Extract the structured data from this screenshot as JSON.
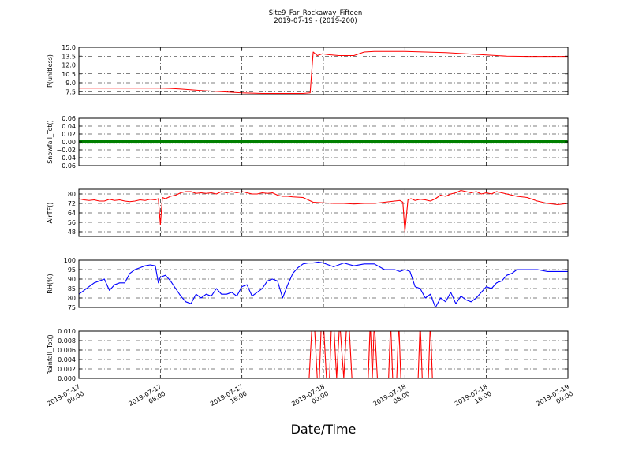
{
  "figure": {
    "title_line1": "Site9_Far_Rockaway_Fifteen",
    "title_line2": "2019-07-19 - (2019-200)",
    "xlabel": "Date/Time"
  },
  "chart_data": [
    {
      "type": "line",
      "ylabel": "P(unitless)",
      "ylim": [
        7.0,
        15.0
      ],
      "yticks": [
        "15.0",
        "13.5",
        "12.0",
        "10.5",
        "9.0",
        "7.5"
      ],
      "ytick_values": [
        15.0,
        13.5,
        12.0,
        10.5,
        9.0,
        7.5
      ],
      "grid": true,
      "series": [
        {
          "color": "#ff0000",
          "x": [
            0,
            2,
            4,
            6,
            8,
            9,
            10,
            12,
            14,
            16,
            18,
            20,
            22,
            22.7,
            23,
            23.4,
            23.9,
            24.5,
            25.5,
            27,
            28,
            29,
            30,
            32,
            34,
            36,
            38,
            40,
            42,
            44,
            46,
            48
          ],
          "y": [
            8.1,
            8.1,
            8.1,
            8.1,
            8.1,
            8.05,
            7.95,
            7.7,
            7.5,
            7.3,
            7.2,
            7.2,
            7.2,
            7.3,
            14.2,
            13.6,
            13.9,
            13.75,
            13.6,
            13.6,
            14.2,
            14.3,
            14.3,
            14.3,
            14.2,
            14.1,
            13.9,
            13.7,
            13.5,
            13.45,
            13.45,
            13.45
          ]
        }
      ]
    },
    {
      "type": "scatter",
      "ylabel": "Snowfall_Tot()",
      "ylim": [
        -0.06,
        0.06
      ],
      "yticks": [
        "0.06",
        "0.04",
        "0.02",
        "0.00",
        "−0.02",
        "−0.04",
        "−0.06"
      ],
      "ytick_values": [
        0.06,
        0.04,
        0.02,
        0.0,
        -0.02,
        -0.04,
        -0.06
      ],
      "grid": true,
      "series": [
        {
          "color": "#008000",
          "x_start": 0,
          "x_end": 48,
          "x_step": 0.1667,
          "y_constant": 0.0
        }
      ]
    },
    {
      "type": "line",
      "ylabel": "AirTF()",
      "ylim": [
        44,
        84
      ],
      "yticks": [
        "80",
        "72",
        "64",
        "56",
        "48"
      ],
      "ytick_values": [
        80,
        72,
        64,
        56,
        48
      ],
      "grid": true,
      "series": [
        {
          "color": "#ff0000",
          "x": [
            0,
            0.5,
            1,
            1.5,
            2,
            2.5,
            3,
            3.5,
            4,
            4.5,
            5,
            5.5,
            6,
            6.5,
            7,
            7.5,
            7.8,
            8.0,
            8.2,
            8.5,
            9,
            9.5,
            10,
            10.5,
            11,
            11.5,
            12,
            12.5,
            13,
            13.5,
            14,
            14.5,
            15,
            15.5,
            16,
            16.5,
            17,
            17.5,
            18,
            18.5,
            19,
            19.5,
            20,
            20.5,
            21,
            22,
            23,
            24,
            25,
            26,
            27,
            28,
            29,
            30,
            31,
            31.5,
            31.8,
            32.0,
            32.3,
            32.6,
            33,
            33.5,
            34,
            34.5,
            35,
            35.5,
            36,
            36.5,
            37,
            37.5,
            38,
            38.5,
            39,
            39.5,
            40,
            40.5,
            41,
            41.5,
            42,
            43,
            44,
            45,
            46,
            47,
            48
          ],
          "y": [
            76,
            75,
            74.5,
            75,
            74,
            74,
            75.5,
            74.5,
            75,
            74,
            73.5,
            74,
            75,
            74.5,
            75.5,
            75,
            76,
            54,
            77,
            76,
            78,
            79,
            81,
            82,
            82,
            80.5,
            81,
            80.5,
            81,
            80,
            82,
            81,
            82,
            81,
            82,
            81,
            80,
            80,
            81,
            80.5,
            81,
            79,
            78,
            78,
            77.5,
            77,
            73,
            72.5,
            72,
            72,
            71.5,
            72,
            72,
            73,
            74,
            74.5,
            73,
            48,
            75,
            76,
            74.5,
            75.5,
            75,
            74,
            76,
            79,
            78,
            80,
            81,
            83,
            82,
            81,
            82,
            80,
            81,
            80,
            82,
            81,
            80,
            78,
            77,
            74,
            72,
            71,
            72
          ]
        }
      ]
    },
    {
      "type": "line",
      "ylabel": "RH(%)",
      "ylim": [
        75,
        100
      ],
      "yticks": [
        "100",
        "95",
        "90",
        "85",
        "80",
        "75"
      ],
      "ytick_values": [
        100,
        95,
        90,
        85,
        80,
        75
      ],
      "grid": true,
      "series": [
        {
          "color": "#0000ff",
          "x": [
            0,
            0.5,
            1,
            1.5,
            2,
            2.5,
            3,
            3.5,
            4,
            4.5,
            5,
            5.5,
            6,
            6.5,
            7,
            7.5,
            7.8,
            8,
            8.5,
            9,
            9.5,
            10,
            10.5,
            11,
            11.5,
            12,
            12.5,
            13,
            13.5,
            14,
            14.5,
            15,
            15.5,
            16,
            16.5,
            17,
            17.5,
            18,
            18.5,
            19,
            19.5,
            20,
            20.5,
            21,
            21.5,
            22,
            22.5,
            23,
            23.5,
            24,
            25,
            26,
            27,
            28,
            29,
            30,
            31,
            31.5,
            32,
            32.5,
            33,
            33.5,
            34,
            34.5,
            35,
            35.5,
            36,
            36.5,
            37,
            37.5,
            38,
            38.5,
            39,
            39.5,
            40,
            40.5,
            41,
            41.5,
            42,
            42.5,
            43,
            43.5,
            44,
            45,
            46,
            47,
            48
          ],
          "y": [
            82,
            84,
            86,
            88,
            89,
            90,
            84,
            87,
            88,
            88,
            93,
            95,
            96,
            97,
            97.5,
            97,
            88,
            91,
            92,
            89,
            85,
            81,
            78,
            77,
            82,
            80,
            82,
            81,
            85,
            82,
            82,
            83,
            81,
            86,
            87,
            81,
            83,
            85,
            89,
            90,
            89,
            80,
            87,
            93,
            96,
            98,
            98.5,
            98.5,
            99,
            98.5,
            96.5,
            98.5,
            97,
            98,
            98,
            95,
            95,
            94,
            95,
            94,
            86,
            85,
            80,
            82,
            75,
            80,
            78,
            83,
            77,
            81,
            79,
            78,
            80,
            83,
            86,
            85,
            88,
            89,
            92,
            93,
            95,
            95,
            95,
            95,
            94,
            94,
            94
          ]
        }
      ]
    },
    {
      "type": "line",
      "ylabel": "Rainfall_Tot()",
      "ylim": [
        0.0,
        0.01
      ],
      "yticks": [
        "0.010",
        "0.008",
        "0.006",
        "0.004",
        "0.002",
        "0.000"
      ],
      "ytick_values": [
        0.01,
        0.008,
        0.006,
        0.004,
        0.002,
        0.0
      ],
      "grid": true,
      "series": [
        {
          "color": "#ff0000",
          "x": [
            0,
            22.6,
            22.9,
            23.1,
            23.4,
            23.6,
            23.8,
            24.0,
            24.3,
            24.6,
            24.8,
            25.0,
            25.3,
            25.6,
            26.0,
            26.3,
            26.5,
            26.8,
            27.0,
            28.4,
            28.6,
            28.8,
            29.0,
            29.3,
            30.4,
            30.6,
            30.8,
            31.2,
            31.4,
            31.6,
            32.0,
            33.3,
            33.5,
            33.7,
            34.3,
            34.5,
            34.7,
            48
          ],
          "y": [
            0,
            0,
            0.012,
            0.012,
            0,
            0,
            0.012,
            0.012,
            0,
            0,
            0.012,
            0.012,
            0,
            0.012,
            0,
            0.012,
            0.012,
            0,
            0,
            0,
            0.012,
            0,
            0.012,
            0,
            0,
            0.012,
            0,
            0,
            0.012,
            0,
            0,
            0,
            0.012,
            0,
            0,
            0.012,
            0,
            0
          ]
        }
      ]
    }
  ],
  "x_axis": {
    "ticks": [
      {
        "hour": 0,
        "label_date": "2019-07-17",
        "label_time": "00:00"
      },
      {
        "hour": 8,
        "label_date": "2019-07-17",
        "label_time": "08:00"
      },
      {
        "hour": 16,
        "label_date": "2019-07-17",
        "label_time": "16:00"
      },
      {
        "hour": 24,
        "label_date": "2019-07-18",
        "label_time": "00:00"
      },
      {
        "hour": 32,
        "label_date": "2019-07-18",
        "label_time": "08:00"
      },
      {
        "hour": 40,
        "label_date": "2019-07-18",
        "label_time": "16:00"
      },
      {
        "hour": 48,
        "label_date": "2019-07-19",
        "label_time": "00:00"
      }
    ],
    "xlim": [
      0,
      48
    ]
  }
}
